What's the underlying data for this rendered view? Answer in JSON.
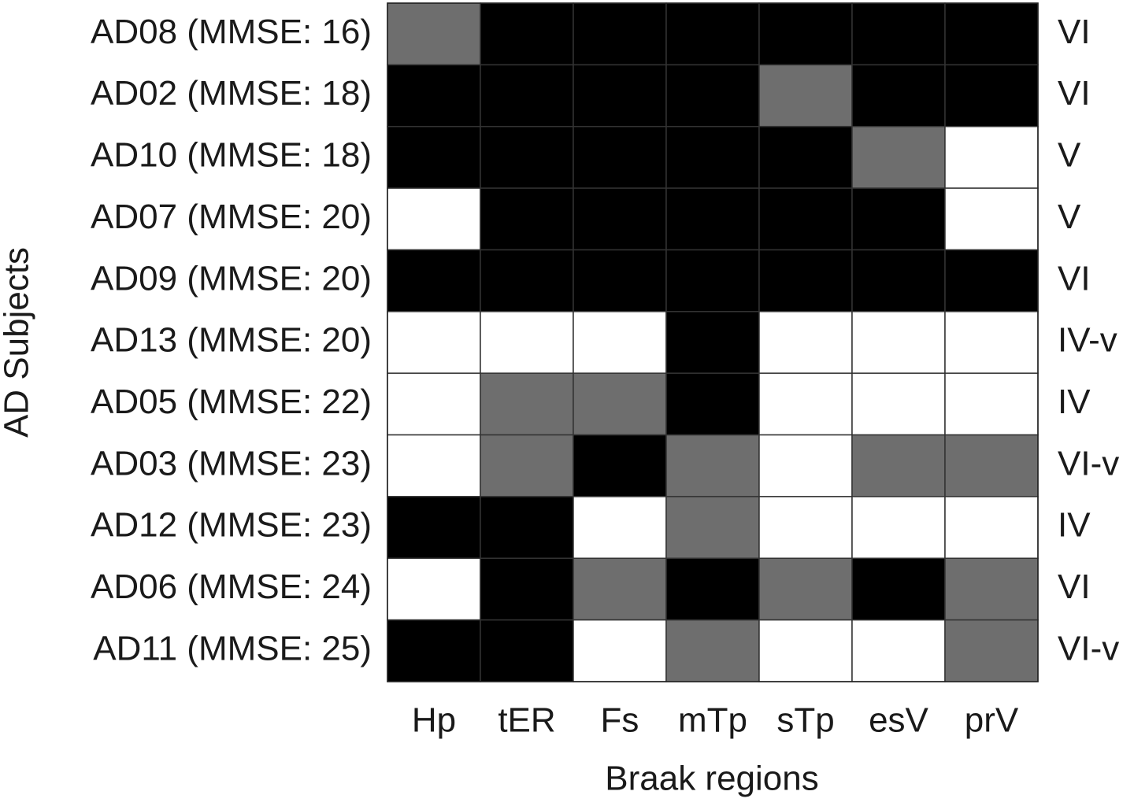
{
  "chart_data": {
    "type": "heatmap",
    "xlabel": "Braak regions",
    "ylabel": "AD Subjects",
    "categories": [
      "Hp",
      "tER",
      "Fs",
      "mTp",
      "sTp",
      "esV",
      "prV"
    ],
    "rows": [
      "AD08 (MMSE: 16)",
      "AD02 (MMSE: 18)",
      "AD10 (MMSE: 18)",
      "AD07 (MMSE: 20)",
      "AD09 (MMSE: 20)",
      "AD13 (MMSE: 20)",
      "AD05 (MMSE: 22)",
      "AD03 (MMSE: 23)",
      "AD12 (MMSE: 23)",
      "AD06 (MMSE: 24)",
      "AD11 (MMSE: 25)"
    ],
    "row_annotations": [
      "VI",
      "VI",
      "V",
      "V",
      "VI",
      "IV-v",
      "IV",
      "VI-v",
      "IV",
      "VI",
      "VI-v"
    ],
    "colors": [
      "#ffffff",
      "#6e6e6e",
      "#000000"
    ],
    "values": [
      [
        1,
        2,
        2,
        2,
        2,
        2,
        2
      ],
      [
        2,
        2,
        2,
        2,
        1,
        2,
        2
      ],
      [
        2,
        2,
        2,
        2,
        2,
        1,
        0
      ],
      [
        0,
        2,
        2,
        2,
        2,
        2,
        0
      ],
      [
        2,
        2,
        2,
        2,
        2,
        2,
        2
      ],
      [
        0,
        0,
        0,
        2,
        0,
        0,
        0
      ],
      [
        0,
        1,
        1,
        2,
        0,
        0,
        0
      ],
      [
        0,
        1,
        2,
        1,
        0,
        1,
        1
      ],
      [
        2,
        2,
        0,
        1,
        0,
        0,
        0
      ],
      [
        0,
        2,
        1,
        2,
        1,
        2,
        1
      ],
      [
        2,
        2,
        0,
        1,
        0,
        0,
        1
      ]
    ]
  }
}
